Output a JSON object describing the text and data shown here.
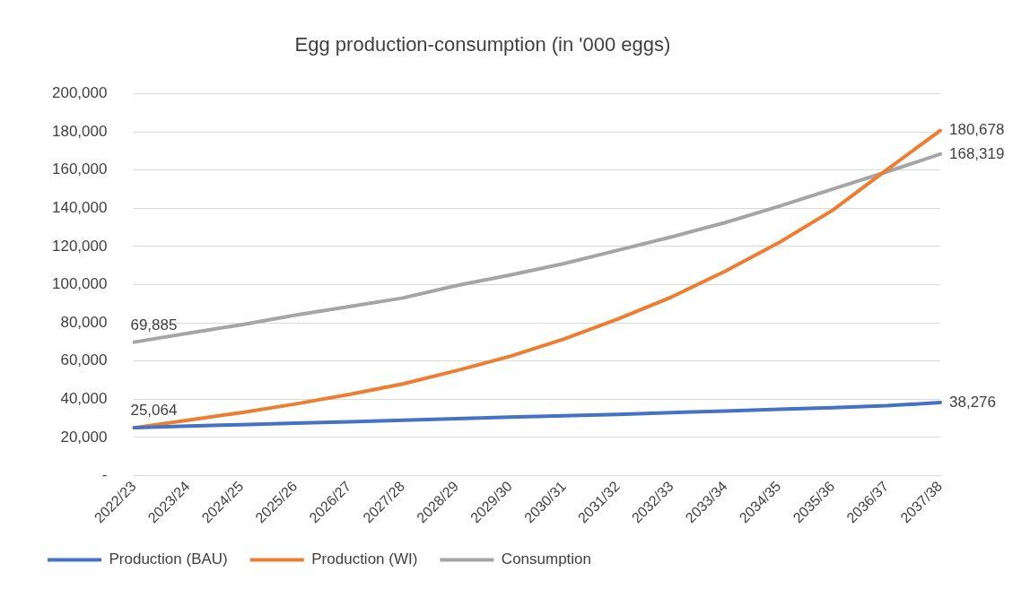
{
  "chart_data": {
    "type": "line",
    "title": "Egg production-consumption (in '000 eggs)",
    "categories": [
      "2022/23",
      "2023/24",
      "2024/25",
      "2025/26",
      "2026/27",
      "2027/28",
      "2028/29",
      "2029/30",
      "2030/31",
      "2031/32",
      "2032/33",
      "2033/34",
      "2034/35",
      "2035/36",
      "2036/37",
      "2037/38"
    ],
    "series": [
      {
        "name": "Production (BAU)",
        "color": "#4472c4",
        "values": [
          25064,
          25900,
          26700,
          27500,
          28200,
          29000,
          29800,
          30600,
          31300,
          32100,
          33000,
          33800,
          34700,
          35600,
          36600,
          38276
        ],
        "value_labels": [
          "25,064",
          null,
          null,
          null,
          null,
          null,
          null,
          null,
          null,
          null,
          null,
          null,
          null,
          null,
          null,
          "38,276"
        ]
      },
      {
        "name": "Production (WI)",
        "color": "#ed7d31",
        "values": [
          25064,
          29000,
          33000,
          37500,
          42500,
          48000,
          55000,
          62500,
          71500,
          82000,
          93500,
          107000,
          122000,
          139000,
          160000,
          180678
        ],
        "value_labels": [
          null,
          null,
          null,
          null,
          null,
          null,
          null,
          null,
          null,
          null,
          null,
          null,
          null,
          null,
          null,
          "180,678"
        ]
      },
      {
        "name": "Consumption",
        "color": "#a5a5a5",
        "values": [
          69885,
          74500,
          79000,
          84000,
          88500,
          93000,
          99500,
          105000,
          111000,
          118000,
          125000,
          132500,
          141000,
          150000,
          159000,
          168319
        ],
        "value_labels": [
          "69,885",
          null,
          null,
          null,
          null,
          null,
          null,
          null,
          null,
          null,
          null,
          null,
          null,
          null,
          null,
          "168,319"
        ]
      }
    ],
    "ylim": [
      0,
      200000
    ],
    "yticks": [
      {
        "value": 0,
        "label": "-"
      },
      {
        "value": 20000,
        "label": "20,000"
      },
      {
        "value": 40000,
        "label": "40,000"
      },
      {
        "value": 60000,
        "label": "60,000"
      },
      {
        "value": 80000,
        "label": "80,000"
      },
      {
        "value": 100000,
        "label": "100,000"
      },
      {
        "value": 120000,
        "label": "120,000"
      },
      {
        "value": 140000,
        "label": "140,000"
      },
      {
        "value": 160000,
        "label": "160,000"
      },
      {
        "value": 180000,
        "label": "180,000"
      },
      {
        "value": 200000,
        "label": "200,000"
      }
    ],
    "grid": "y",
    "legend": "bottom",
    "marker": "none",
    "line_style": "solid"
  }
}
